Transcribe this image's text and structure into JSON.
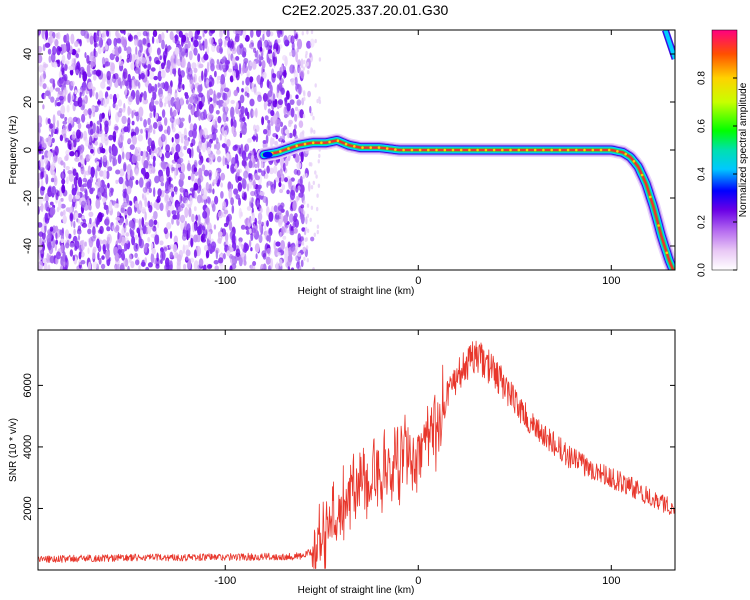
{
  "title": "C2E2.2025.337.20.01.G30",
  "chart_data": [
    {
      "type": "heatmap",
      "xlabel": "Height of straight line (km)",
      "ylabel": "Frequency (Hz)",
      "xlim": [
        -197,
        133
      ],
      "ylim": [
        -50,
        50
      ],
      "xticks": [
        -100,
        0,
        100
      ],
      "yticks": [
        -40,
        -20,
        0,
        20,
        40
      ],
      "noise_region": [
        -197,
        -60
      ],
      "ridge": {
        "x": [
          -80,
          -73,
          -62,
          -55,
          -48,
          -42,
          -36,
          -30,
          -20,
          -10,
          0,
          60,
          100,
          106,
          110,
          114,
          118,
          122,
          126,
          130,
          133
        ],
        "freq": [
          -2,
          -1,
          2,
          3,
          3,
          4,
          2,
          1,
          1,
          0,
          0,
          0,
          0,
          -1,
          -3,
          -7,
          -14,
          -24,
          -36,
          -46,
          -52
        ]
      },
      "edge_feature": {
        "x": [
          128,
          133
        ],
        "freq": [
          50,
          38
        ]
      },
      "colorbar": {
        "label": "Normalized spectral amplitude",
        "range": [
          0,
          1
        ],
        "ticks": [
          0,
          0.2,
          0.4,
          0.6,
          0.8
        ],
        "tick_labels": [
          "0.0",
          "0.2",
          "0.4",
          "0.6",
          "0.8"
        ]
      }
    },
    {
      "type": "line",
      "xlabel": "Height of straight line (km)",
      "ylabel": "SNR (10 * v/v)",
      "xlim": [
        -197,
        133
      ],
      "ylim": [
        0,
        7800
      ],
      "xticks": [
        -100,
        0,
        100
      ],
      "yticks": [
        2000,
        4000,
        6000
      ],
      "series": [
        {
          "name": "SNR",
          "color": "#e8362b",
          "x": [
            -197,
            -150,
            -100,
            -80,
            -60,
            -55,
            -50,
            -45,
            -40,
            -30,
            -20,
            -10,
            0,
            10,
            20,
            30,
            40,
            50,
            60,
            80,
            100,
            120,
            133
          ],
          "y": [
            350,
            400,
            420,
            430,
            450,
            600,
            1100,
            1700,
            2200,
            2800,
            3300,
            3700,
            4200,
            5200,
            6300,
            7000,
            6400,
            5500,
            4600,
            3600,
            3000,
            2400,
            2000
          ]
        }
      ]
    }
  ]
}
